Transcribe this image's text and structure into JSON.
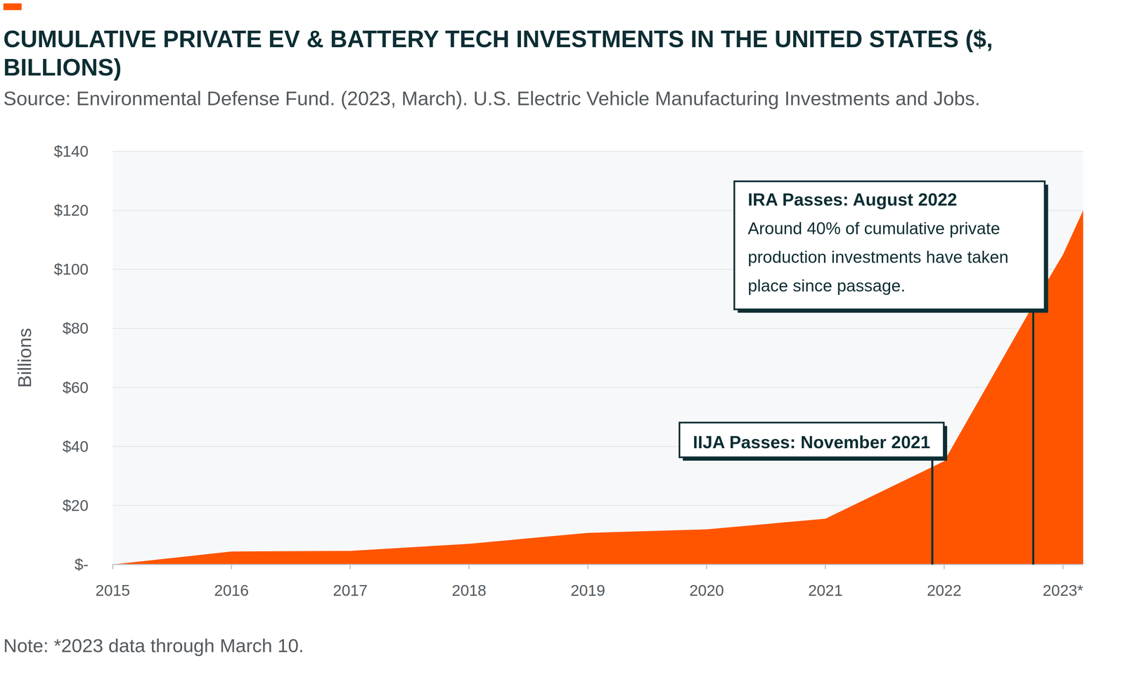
{
  "chart_data": {
    "type": "area",
    "title": "CUMULATIVE PRIVATE EV & BATTERY TECH INVESTMENTS IN THE UNITED STATES ($, BILLIONS)",
    "subtitle": "Source: Environmental Defense Fund. (2023, March). U.S. Electric Vehicle Manufacturing Investments and Jobs.",
    "y_label": "Billions",
    "note": "Note: *2023 data through March 10.",
    "x": [
      2015,
      2016,
      2017,
      2018,
      2019,
      2020,
      2021,
      2022,
      2022.75,
      2023,
      2023.17
    ],
    "values": [
      0,
      4.4,
      4.6,
      7.0,
      10.7,
      11.9,
      15.5,
      35,
      88,
      105,
      120
    ],
    "color": "#ff5500",
    "xlim": [
      2015,
      2023.17
    ],
    "xticks": [
      2015,
      2016,
      2017,
      2018,
      2019,
      2020,
      2021,
      2022,
      {
        "value": 2023,
        "label": "2023*"
      }
    ],
    "ylim": [
      0,
      140
    ],
    "yticks": [
      {
        "value": 0,
        "label": "$-"
      },
      {
        "value": 20,
        "label": "$20"
      },
      {
        "value": 40,
        "label": "$40"
      },
      {
        "value": 60,
        "label": "$60"
      },
      {
        "value": 80,
        "label": "$80"
      },
      {
        "value": 100,
        "label": "$100"
      },
      {
        "value": 120,
        "label": "$120"
      },
      {
        "value": 140,
        "label": "$140"
      }
    ],
    "grid": true,
    "annotations": [
      {
        "x": 2021.9,
        "title": "IIJA Passes: November 2021"
      },
      {
        "x": 2022.75,
        "title": "IRA Passes: August 2022",
        "text": "Around 40% of cumulative private production investments have taken place since passage."
      }
    ]
  }
}
